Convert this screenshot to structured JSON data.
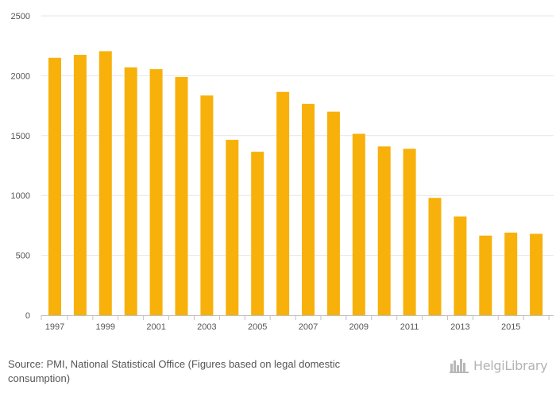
{
  "chart_data": {
    "type": "bar",
    "categories": [
      "1997",
      "1998",
      "1999",
      "2000",
      "2001",
      "2002",
      "2003",
      "2004",
      "2005",
      "2006",
      "2007",
      "2008",
      "2009",
      "2010",
      "2011",
      "2012",
      "2013",
      "2014",
      "2015",
      "2016"
    ],
    "values": [
      2150,
      2175,
      2205,
      2070,
      2055,
      1990,
      1835,
      1465,
      1365,
      1865,
      1765,
      1700,
      1515,
      1410,
      1390,
      980,
      825,
      665,
      690,
      680
    ],
    "x_tick_labels": [
      "1997",
      "1999",
      "2001",
      "2003",
      "2005",
      "2007",
      "2009",
      "2011",
      "2013",
      "2015"
    ],
    "y_ticks": [
      0,
      500,
      1000,
      1500,
      2000,
      2500
    ],
    "ylim": [
      0,
      2500
    ],
    "bar_color": "#F7B10A",
    "grid": true,
    "title": "",
    "xlabel": "",
    "ylabel": ""
  },
  "footer": {
    "source_label": "Source:",
    "source_text": "PMI, National Statistical Office (Figures based on legal domestic consumption)"
  },
  "logo": {
    "text": "HelgiLibrary",
    "icon": "bar-chart-books-icon"
  }
}
